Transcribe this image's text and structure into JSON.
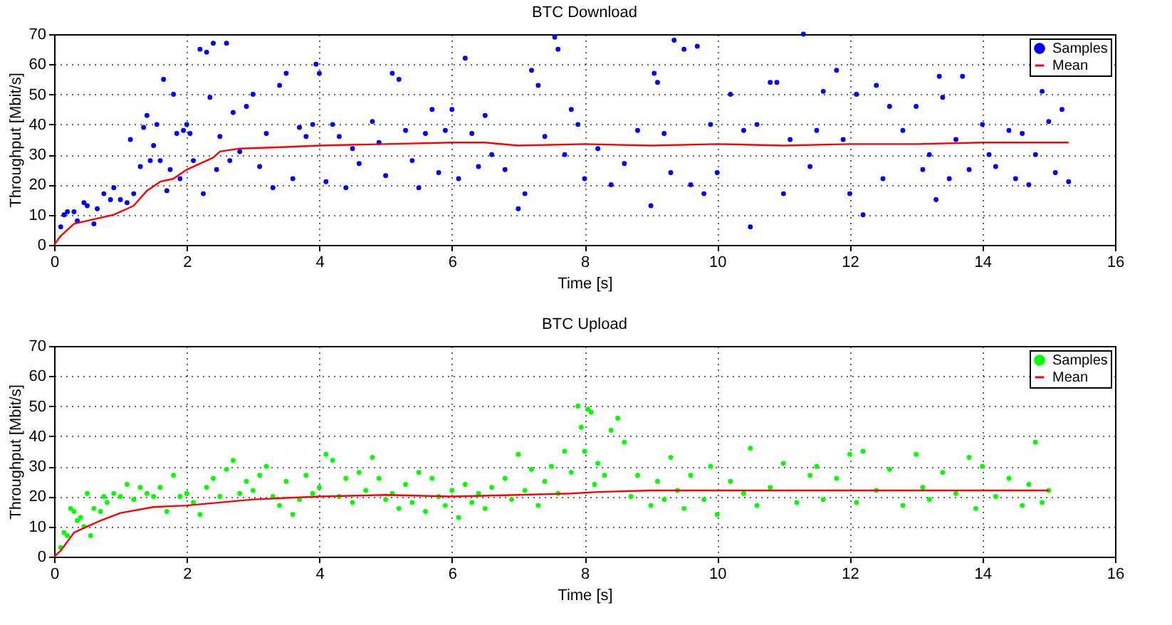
{
  "chart_data": [
    {
      "type": "scatter",
      "title": "BTC Download",
      "xlabel": "Time [s]",
      "ylabel": "Throughput [Mbit/s]",
      "xlim": [
        0,
        16
      ],
      "xticks": [
        0,
        2,
        4,
        6,
        8,
        10,
        12,
        14,
        16
      ],
      "ylim": [
        0,
        70
      ],
      "yticks": [
        0,
        10,
        20,
        30,
        40,
        50,
        60,
        70
      ],
      "grid": true,
      "legend": "top right",
      "series": [
        {
          "name": "Samples",
          "color": "#0000ff",
          "marker": "circle",
          "x": [
            0.1,
            0.15,
            0.2,
            0.3,
            0.35,
            0.45,
            0.5,
            0.6,
            0.65,
            0.75,
            0.85,
            0.9,
            1.0,
            1.1,
            1.15,
            1.2,
            1.3,
            1.35,
            1.4,
            1.45,
            1.5,
            1.55,
            1.6,
            1.65,
            1.7,
            1.75,
            1.8,
            1.85,
            1.9,
            1.95,
            2.0,
            2.05,
            2.1,
            2.2,
            2.25,
            2.3,
            2.35,
            2.4,
            2.45,
            2.5,
            2.6,
            2.65,
            2.7,
            2.8,
            2.9,
            3.0,
            3.1,
            3.2,
            3.3,
            3.4,
            3.5,
            3.6,
            3.7,
            3.8,
            3.9,
            3.95,
            4.0,
            4.1,
            4.2,
            4.3,
            4.4,
            4.5,
            4.6,
            4.8,
            4.9,
            5.0,
            5.1,
            5.2,
            5.3,
            5.4,
            5.5,
            5.6,
            5.7,
            5.8,
            5.9,
            6.0,
            6.1,
            6.2,
            6.3,
            6.4,
            6.5,
            6.6,
            6.8,
            7.0,
            7.1,
            7.2,
            7.3,
            7.4,
            7.55,
            7.6,
            7.7,
            7.8,
            7.9,
            8.0,
            8.2,
            8.4,
            8.6,
            8.8,
            9.0,
            9.05,
            9.1,
            9.2,
            9.3,
            9.35,
            9.5,
            9.6,
            9.7,
            9.8,
            9.9,
            10.0,
            10.2,
            10.4,
            10.5,
            10.6,
            10.8,
            10.9,
            11.0,
            11.1,
            11.3,
            11.4,
            11.5,
            11.6,
            11.8,
            11.9,
            12.0,
            12.1,
            12.2,
            12.4,
            12.5,
            12.6,
            12.8,
            13.0,
            13.1,
            13.2,
            13.3,
            13.35,
            13.4,
            13.5,
            13.6,
            13.7,
            13.8,
            14.0,
            14.1,
            14.2,
            14.4,
            14.5,
            14.6,
            14.7,
            14.8,
            14.9,
            15.0,
            15.1,
            15.2,
            15.3
          ],
          "values": [
            6,
            10,
            11,
            11,
            8,
            14,
            13,
            7,
            12,
            17,
            15,
            19,
            15,
            14,
            35,
            17,
            26,
            39,
            43,
            28,
            33,
            40,
            28,
            55,
            18,
            25,
            50,
            37,
            22,
            38,
            40,
            37,
            28,
            65,
            17,
            64,
            49,
            67,
            25,
            36,
            67,
            28,
            44,
            31,
            46,
            50,
            26,
            37,
            19,
            53,
            57,
            22,
            39,
            36,
            40,
            60,
            57,
            21,
            40,
            36,
            19,
            32,
            27,
            41,
            34,
            23,
            57,
            55,
            38,
            28,
            19,
            37,
            45,
            24,
            38,
            45,
            22,
            62,
            37,
            26,
            43,
            30,
            25,
            12,
            17,
            58,
            53,
            36,
            69,
            65,
            30,
            45,
            40,
            22,
            32,
            20,
            27,
            38,
            13,
            57,
            54,
            37,
            24,
            68,
            65,
            20,
            66,
            17,
            40,
            24,
            50,
            38,
            6,
            40,
            54,
            54,
            17,
            35,
            70,
            26,
            38,
            51,
            58,
            35,
            17,
            50,
            10,
            53,
            22,
            46,
            38,
            46,
            25,
            30,
            15,
            56,
            49,
            22,
            35,
            56,
            25,
            40,
            30,
            26,
            38,
            22,
            37,
            20,
            30,
            51,
            41,
            24,
            45,
            21
          ]
        },
        {
          "name": "Mean",
          "type": "line",
          "color": "#ff0000",
          "x": [
            0,
            0.1,
            0.3,
            0.5,
            0.7,
            0.9,
            1.1,
            1.2,
            1.4,
            1.6,
            1.8,
            2.0,
            2.2,
            2.4,
            2.5,
            2.8,
            3.5,
            4,
            5,
            6,
            6.5,
            7,
            8,
            9,
            10,
            11,
            12,
            13,
            14,
            15.3
          ],
          "values": [
            0,
            3,
            7,
            8,
            9,
            10,
            12,
            13,
            18,
            21,
            22,
            25,
            27,
            29,
            31,
            32,
            32.5,
            33,
            33.5,
            34,
            34,
            33,
            33.5,
            33,
            33.5,
            33,
            33.5,
            33.5,
            34,
            34
          ]
        }
      ]
    },
    {
      "type": "scatter",
      "title": "BTC Upload",
      "xlabel": "Time [s]",
      "ylabel": "Throughput [Mbit/s]",
      "xlim": [
        0,
        16
      ],
      "xticks": [
        0,
        2,
        4,
        6,
        8,
        10,
        12,
        14,
        16
      ],
      "ylim": [
        0,
        70
      ],
      "yticks": [
        0,
        10,
        20,
        30,
        40,
        50,
        60,
        70
      ],
      "grid": true,
      "legend": "top right",
      "series": [
        {
          "name": "Samples",
          "color": "#00ff00",
          "marker": "circle",
          "x": [
            0.1,
            0.15,
            0.2,
            0.25,
            0.3,
            0.35,
            0.4,
            0.45,
            0.5,
            0.55,
            0.6,
            0.7,
            0.75,
            0.8,
            0.9,
            1.0,
            1.1,
            1.2,
            1.3,
            1.4,
            1.5,
            1.6,
            1.7,
            1.8,
            1.9,
            2.0,
            2.1,
            2.2,
            2.3,
            2.4,
            2.5,
            2.6,
            2.7,
            2.8,
            2.9,
            3.0,
            3.1,
            3.2,
            3.3,
            3.4,
            3.5,
            3.6,
            3.7,
            3.8,
            3.9,
            4.0,
            4.1,
            4.2,
            4.3,
            4.4,
            4.5,
            4.6,
            4.7,
            4.8,
            4.9,
            5.0,
            5.1,
            5.2,
            5.3,
            5.4,
            5.5,
            5.6,
            5.7,
            5.8,
            5.9,
            6.0,
            6.1,
            6.2,
            6.3,
            6.4,
            6.5,
            6.6,
            6.8,
            6.9,
            7.0,
            7.1,
            7.2,
            7.3,
            7.4,
            7.5,
            7.6,
            7.7,
            7.8,
            7.9,
            7.95,
            8.0,
            8.05,
            8.1,
            8.15,
            8.2,
            8.3,
            8.4,
            8.5,
            8.6,
            8.7,
            8.8,
            9.0,
            9.1,
            9.2,
            9.3,
            9.4,
            9.5,
            9.6,
            9.8,
            9.9,
            10.0,
            10.2,
            10.4,
            10.5,
            10.6,
            10.8,
            11.0,
            11.2,
            11.4,
            11.5,
            11.6,
            11.8,
            12.0,
            12.1,
            12.2,
            12.4,
            12.6,
            12.8,
            13.0,
            13.1,
            13.2,
            13.4,
            13.6,
            13.8,
            13.9,
            14.0,
            14.2,
            14.4,
            14.6,
            14.7,
            14.8,
            14.9,
            15.0
          ],
          "values": [
            3,
            8,
            7,
            16,
            15,
            12,
            13,
            10,
            21,
            7,
            16,
            15,
            20,
            18,
            21,
            20,
            24,
            19,
            23,
            21,
            20,
            23,
            15,
            27,
            20,
            21,
            18,
            14,
            23,
            26,
            20,
            29,
            32,
            21,
            25,
            22,
            27,
            30,
            20,
            17,
            25,
            14,
            19,
            27,
            21,
            23,
            34,
            32,
            20,
            26,
            18,
            28,
            22,
            33,
            26,
            19,
            21,
            16,
            24,
            18,
            28,
            15,
            26,
            20,
            17,
            22,
            13,
            24,
            18,
            21,
            16,
            23,
            26,
            19,
            34,
            22,
            29,
            17,
            25,
            30,
            21,
            35,
            28,
            50,
            43,
            35,
            49,
            48,
            24,
            31,
            27,
            42,
            46,
            38,
            20,
            27,
            17,
            25,
            19,
            33,
            22,
            16,
            27,
            19,
            30,
            14,
            25,
            21,
            36,
            17,
            23,
            31,
            18,
            27,
            30,
            19,
            26,
            34,
            18,
            35,
            22,
            29,
            17,
            34,
            23,
            19,
            28,
            21,
            33,
            16,
            30,
            20,
            26,
            17,
            24,
            38,
            18,
            22
          ]
        },
        {
          "name": "Mean",
          "type": "line",
          "color": "#ff0000",
          "x": [
            0,
            0.1,
            0.2,
            0.3,
            0.5,
            0.7,
            1,
            1.5,
            2,
            2.5,
            3,
            3.5,
            4,
            5,
            6,
            7,
            7.8,
            8.2,
            9,
            10,
            12,
            14,
            15
          ],
          "values": [
            0,
            2,
            5,
            8,
            10,
            12,
            14.5,
            16.5,
            17,
            18,
            19,
            19.5,
            20,
            20.5,
            20,
            20.5,
            21,
            21.5,
            22,
            22,
            22,
            22,
            22
          ]
        }
      ]
    }
  ]
}
